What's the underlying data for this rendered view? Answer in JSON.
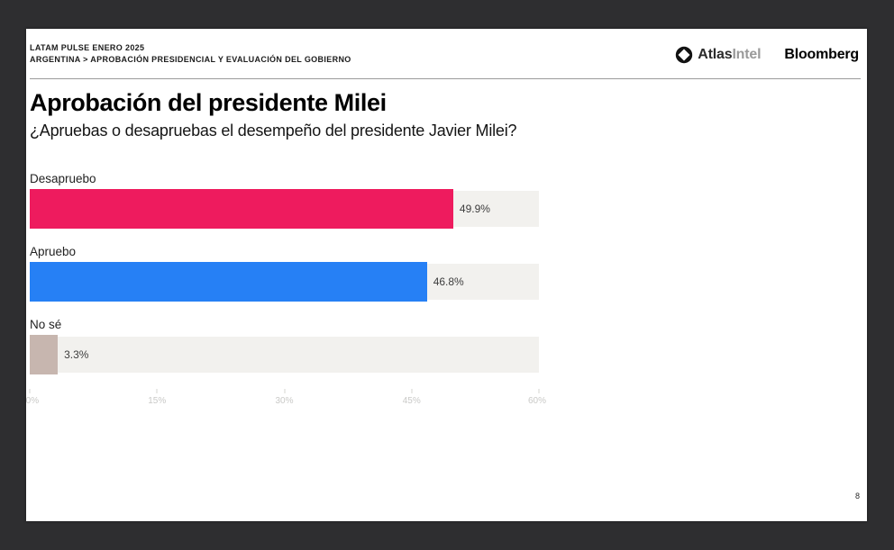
{
  "header": {
    "eyebrow_line1": "LATAM PULSE ENERO 2025",
    "eyebrow_line2": "ARGENTINA > APROBACIÓN PRESIDENCIAL Y EVALUACIÓN DEL GOBIERNO",
    "logos": {
      "atlasintel_part1": "Atlas",
      "atlasintel_part2": "Intel",
      "bloomberg": "Bloomberg"
    }
  },
  "title": "Aprobación del presidente Milei",
  "subtitle": "¿Apruebas o desapruebas el desempeño del presidente Javier Milei?",
  "chart_data": {
    "type": "bar",
    "orientation": "horizontal",
    "categories": [
      "Desapruebo",
      "Apruebo",
      "No sé"
    ],
    "values": [
      49.9,
      46.8,
      3.3
    ],
    "value_labels": [
      "49.9%",
      "46.8%",
      "3.3%"
    ],
    "bar_colors": [
      "#ee1b5e",
      "#2680f5",
      "#c7b6af"
    ],
    "track_color": "#f2f1ee",
    "xlim": [
      0,
      60
    ],
    "x_ticks": [
      "0%",
      "15%",
      "30%",
      "45%",
      "60%"
    ],
    "x_tick_values": [
      0,
      15,
      30,
      45,
      60
    ],
    "grid": false,
    "legend": false,
    "title": "Aprobación del presidente Milei",
    "xlabel": "",
    "ylabel": ""
  },
  "page_number": "8",
  "colors": {
    "background": "#2e2e30",
    "slide": "#ffffff",
    "disapprove": "#ee1b5e",
    "approve": "#2680f5",
    "dont_know": "#c7b6af",
    "bar_track": "#f2f1ee",
    "axis_text": "#c9c9c7",
    "divider": "#9b9b9b"
  }
}
